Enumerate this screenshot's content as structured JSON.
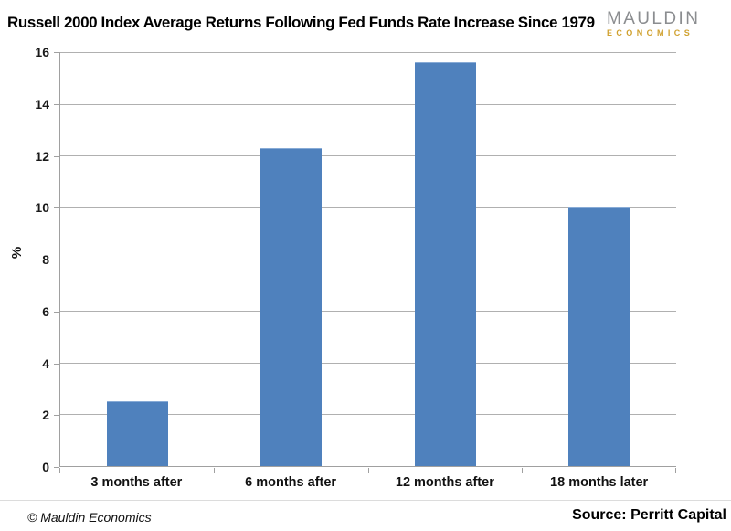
{
  "brand": {
    "name_top": "MAULDIN",
    "name_bottom": "ECONOMICS",
    "color_top": "#8b8d90",
    "color_bottom": "#d0a12f"
  },
  "chart_data": {
    "type": "bar",
    "title": "Russell 2000 Index Average Returns Following Fed Funds Rate Increase Since 1979",
    "categories": [
      "3 months after",
      "6 months after",
      "12 months after",
      "18 months later"
    ],
    "values": [
      2.5,
      12.3,
      15.6,
      10
    ],
    "xlabel": "",
    "ylabel": "%",
    "ylim": [
      0,
      16
    ],
    "ytick_step": 2,
    "grid": true,
    "legend": "none",
    "bar_color": "#4f81bd",
    "bar_edge_color": "#88abd6"
  },
  "footer": {
    "copyright": "© Mauldin Economics",
    "source": "Source: Perritt Capital"
  }
}
